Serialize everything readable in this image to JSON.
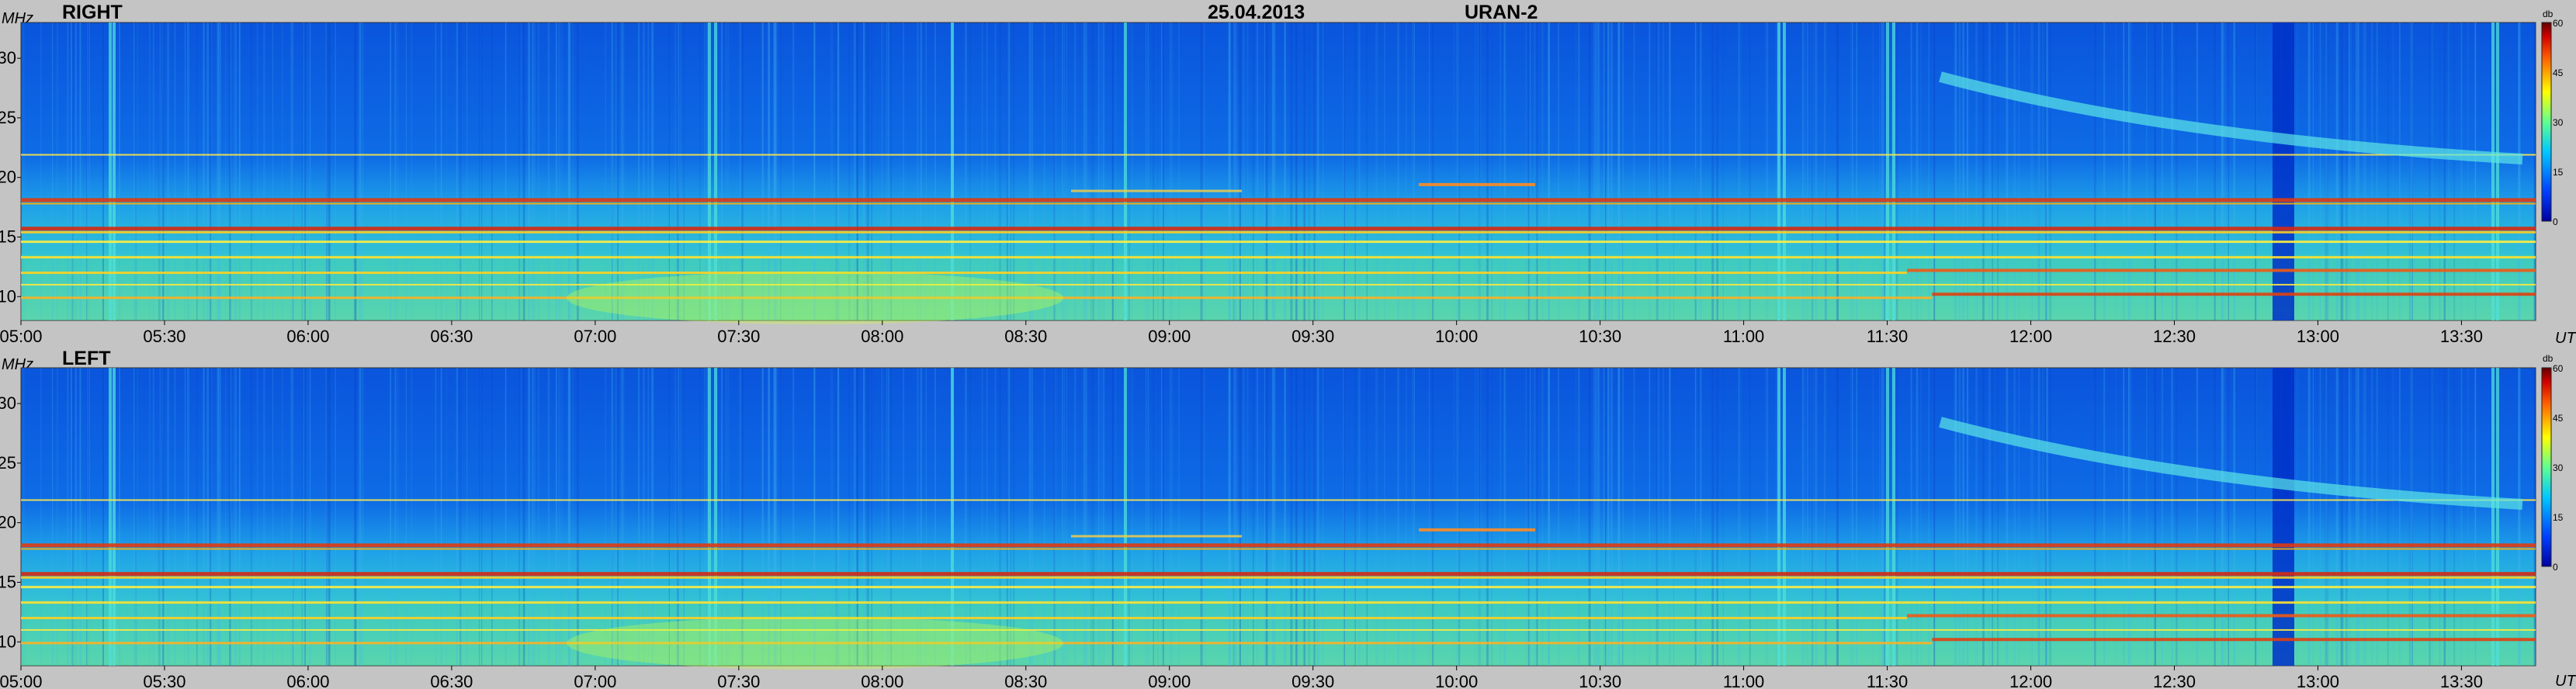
{
  "header": {
    "date": "25.04.2013",
    "instrument": "URAN-2"
  },
  "chart_data": [
    {
      "type": "heatmap",
      "title": "RIGHT",
      "ylabel": "MHz",
      "xlabel": "UT",
      "ylim": [
        8,
        33
      ],
      "yticks": [
        "30",
        "25",
        "20",
        "15",
        "10"
      ],
      "xticks": [
        "05:00",
        "05:30",
        "06:00",
        "06:30",
        "07:00",
        "07:30",
        "08:00",
        "08:30",
        "09:00",
        "09:30",
        "10:00",
        "10:30",
        "11:00",
        "11:30",
        "12:00",
        "12:30",
        "13:00",
        "13:30"
      ],
      "colorbar": {
        "label": "db",
        "ticks": [
          "60",
          "45",
          "30",
          "15",
          "0"
        ],
        "range": [
          0,
          60
        ]
      }
    },
    {
      "type": "heatmap",
      "title": "LEFT",
      "ylabel": "MHz",
      "xlabel": "UT",
      "ylim": [
        8,
        33
      ],
      "yticks": [
        "30",
        "25",
        "20",
        "15",
        "10"
      ],
      "xticks": [
        "05:00",
        "05:30",
        "06:00",
        "06:30",
        "07:00",
        "07:30",
        "08:00",
        "08:30",
        "09:00",
        "09:30",
        "10:00",
        "10:30",
        "11:00",
        "11:30",
        "12:00",
        "12:30",
        "13:00",
        "13:30"
      ],
      "colorbar": {
        "label": "db",
        "ticks": [
          "60",
          "45",
          "30",
          "15",
          "0"
        ],
        "range": [
          0,
          60
        ]
      }
    }
  ]
}
